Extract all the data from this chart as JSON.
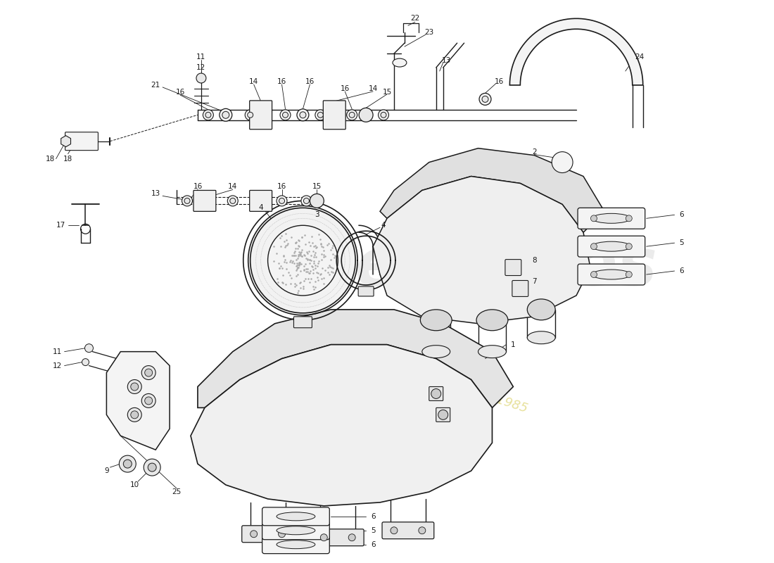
{
  "bg_color": "#ffffff",
  "line_color": "#1a1a1a",
  "gray_fill": "#e8e8e8",
  "light_fill": "#f4f4f4",
  "dark_fill": "#cccccc",
  "watermark1_color": "#c8c8c8",
  "watermark2_color": "#d4c84a",
  "fig_w": 11.0,
  "fig_h": 8.0,
  "dpi": 100,
  "xlim": [
    0,
    110
  ],
  "ylim": [
    0,
    80
  ]
}
